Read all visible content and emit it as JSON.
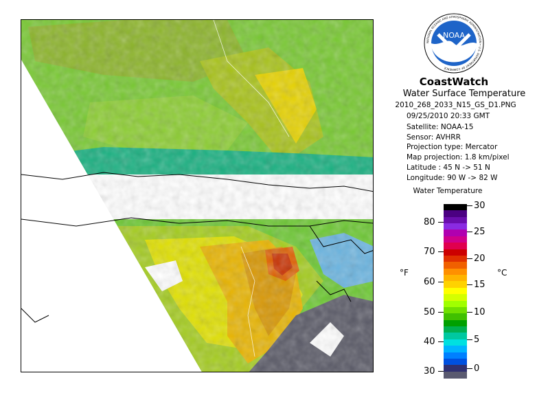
{
  "brand": {
    "title": "CoastWatch",
    "logo_text": "NOAA",
    "logo_ring_text": "NATIONAL OCEANIC AND ATMOSPHERIC ADMINISTRATION • U.S. DEPARTMENT OF COMMERCE"
  },
  "product": {
    "title": "Water Surface Temperature",
    "filename": "2010_268_2033_N15_GS_D1.PNG",
    "date_time": "09/25/2010    20:33 GMT",
    "satellite": "Satellite: NOAA-15",
    "sensor": "Sensor: AVHRR",
    "projection_type": "Projection type:  Mercator",
    "map_projection": "Map projection: 1.8 km/pixel",
    "latitude": "Latitude : 45 N -> 51 N",
    "longitude": "Longitude: 90 W -> 82 W"
  },
  "legend": {
    "title": "Water Temperature",
    "unit_left": "°F",
    "unit_right": "°C",
    "f_ticks": [
      "80",
      "70",
      "60",
      "50",
      "40",
      "30"
    ],
    "c_ticks": [
      "30",
      "25",
      "20",
      "15",
      "10",
      "5",
      "0"
    ],
    "colors": [
      "#000000",
      "#4b0082",
      "#6a0dad",
      "#8a2be2",
      "#b000b0",
      "#d0008a",
      "#e0004e",
      "#cc0000",
      "#e03000",
      "#f06000",
      "#ff9000",
      "#ffb400",
      "#ffd200",
      "#ffff00",
      "#d4ff00",
      "#a0ff00",
      "#70e000",
      "#40c000",
      "#00a000",
      "#00b050",
      "#00c8a0",
      "#00e0e0",
      "#00b4ff",
      "#0080ff",
      "#0050e0",
      "#303070",
      "#5a5a70"
    ],
    "colors_note": "bottom of colorbar is gray (cloud/land); top black"
  },
  "colors": {
    "land": "#ffffff",
    "cloud": "#595966",
    "coast": "#000000"
  }
}
